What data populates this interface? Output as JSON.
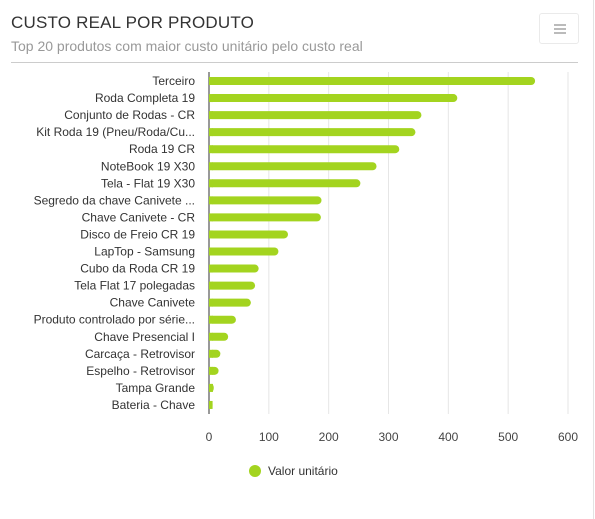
{
  "header": {
    "title": "CUSTO REAL POR PRODUTO",
    "subtitle": "Top 20 produtos com maior custo unitário pelo custo real"
  },
  "menu": {
    "icon": "hamburger-menu-icon"
  },
  "colors": {
    "bar": "#a3d41f",
    "grid": "#e6e6e6",
    "axis": "#333333"
  },
  "legend": {
    "label": "Valor unitário",
    "placement": "bottom-center"
  },
  "chart_data": {
    "type": "bar",
    "orientation": "horizontal",
    "title": "CUSTO REAL POR PRODUTO",
    "subtitle": "Top 20 produtos com maior custo unitário pelo custo real",
    "categories": [
      "Terceiro",
      "Roda Completa 19",
      "Conjunto de Rodas - CR",
      "Kit Roda 19 (Pneu/Roda/Cu...",
      "Roda 19 CR",
      "NoteBook 19 X30",
      "Tela - Flat 19 X30",
      "Segredo da chave Canivete ...",
      "Chave Canivete - CR",
      "Disco de Freio CR 19",
      "LapTop - Samsung",
      "Cubo da Roda CR 19",
      "Tela Flat 17 polegadas",
      "Chave Canivete",
      "Produto controlado por série...",
      "Chave Presencial I",
      "Carcaça - Retrovisor",
      "Espelho - Retrovisor",
      "Tampa Grande",
      "Bateria - Chave"
    ],
    "series": [
      {
        "name": "Valor unitário",
        "values": [
          545,
          415,
          355,
          345,
          318,
          280,
          253,
          188,
          187,
          132,
          116,
          83,
          77,
          70,
          45,
          32,
          19,
          16,
          8,
          6
        ]
      }
    ],
    "xlim": [
      0,
      600
    ],
    "ticks": [
      0,
      100,
      200,
      300,
      400,
      500,
      600
    ],
    "grid": true
  }
}
